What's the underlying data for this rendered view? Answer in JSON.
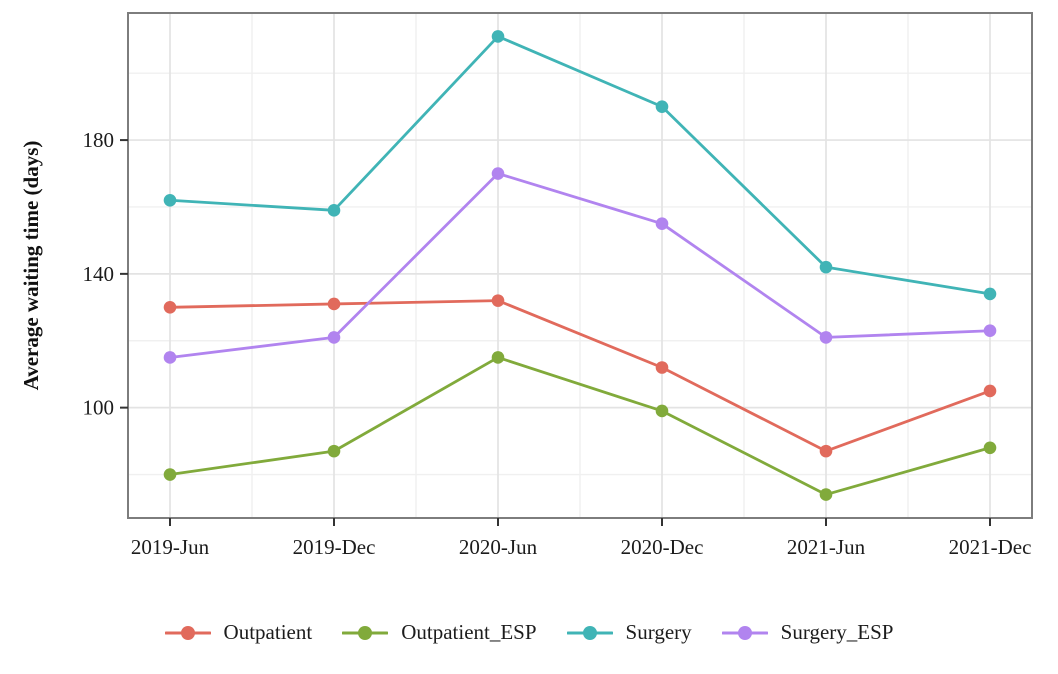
{
  "figure": {
    "background": "#ffffff",
    "text_color": "#1c1c1c"
  },
  "chart_data": {
    "type": "line",
    "title": "",
    "xlabel": "",
    "ylabel": "Average waiting time (days)",
    "categories": [
      "2019-Jun",
      "2019-Dec",
      "2020-Jun",
      "2020-Dec",
      "2021-Jun",
      "2021-Dec"
    ],
    "series": [
      {
        "name": "Outpatient",
        "color": "#e16a5c",
        "values": [
          130,
          131,
          132,
          112,
          87,
          105
        ]
      },
      {
        "name": "Outpatient_ESP",
        "color": "#81aa3b",
        "values": [
          80,
          87,
          115,
          99,
          74,
          88
        ]
      },
      {
        "name": "Surgery",
        "color": "#40b4b6",
        "values": [
          162,
          159,
          211,
          190,
          142,
          134
        ]
      },
      {
        "name": "Surgery_ESP",
        "color": "#b184ef",
        "values": [
          115,
          121,
          170,
          155,
          121,
          123
        ]
      }
    ],
    "y_axis": {
      "ticks": [
        100,
        140,
        180
      ],
      "minor_ticks": [
        80,
        120,
        160,
        200
      ],
      "domain": [
        67,
        218
      ]
    },
    "x_axis": {
      "minor_gridlines_between_categories": true
    },
    "grid": {
      "show": true,
      "major_color": "#e3e3e3",
      "minor_color": "#f0f0f0"
    },
    "panel_border_color": "#7d7d7d",
    "tick_mark_color": "#333333",
    "legend_position": "bottom",
    "marker": "circle"
  }
}
